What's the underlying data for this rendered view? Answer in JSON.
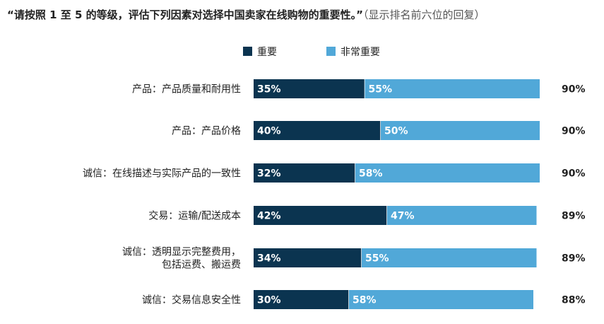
{
  "title": {
    "main": "“请按照 1 至 5 的等级，评估下列因素对选择中国卖家在线购物的重要性。”",
    "note": "（显示排名前六位的回复）"
  },
  "colors": {
    "important": "#0b3450",
    "very_important": "#51a8d8"
  },
  "chart_data": {
    "type": "bar",
    "stacked": true,
    "orientation": "horizontal",
    "legend_position": "top-center",
    "categories": [
      [
        "产品：产品质量和耐用性"
      ],
      [
        "产品：产品价格"
      ],
      [
        "诚信：在线描述与实际产品的一致性"
      ],
      [
        "交易：运输/配送成本"
      ],
      [
        "诚信：透明显示完整费用，",
        "包括运费、搬运费"
      ],
      [
        "诚信：交易信息安全性"
      ]
    ],
    "series": [
      {
        "name": "重要",
        "values": [
          35,
          40,
          32,
          42,
          34,
          30
        ]
      },
      {
        "name": "非常重要",
        "values": [
          55,
          50,
          58,
          47,
          55,
          58
        ]
      }
    ],
    "value_labels": [
      [
        "35%",
        "40%",
        "32%",
        "42%",
        "34%",
        "30%"
      ],
      [
        "55%",
        "50%",
        "58%",
        "47%",
        "55%",
        "58%"
      ]
    ],
    "totals": [
      "90%",
      "90%",
      "90%",
      "89%",
      "89%",
      "88%"
    ]
  }
}
